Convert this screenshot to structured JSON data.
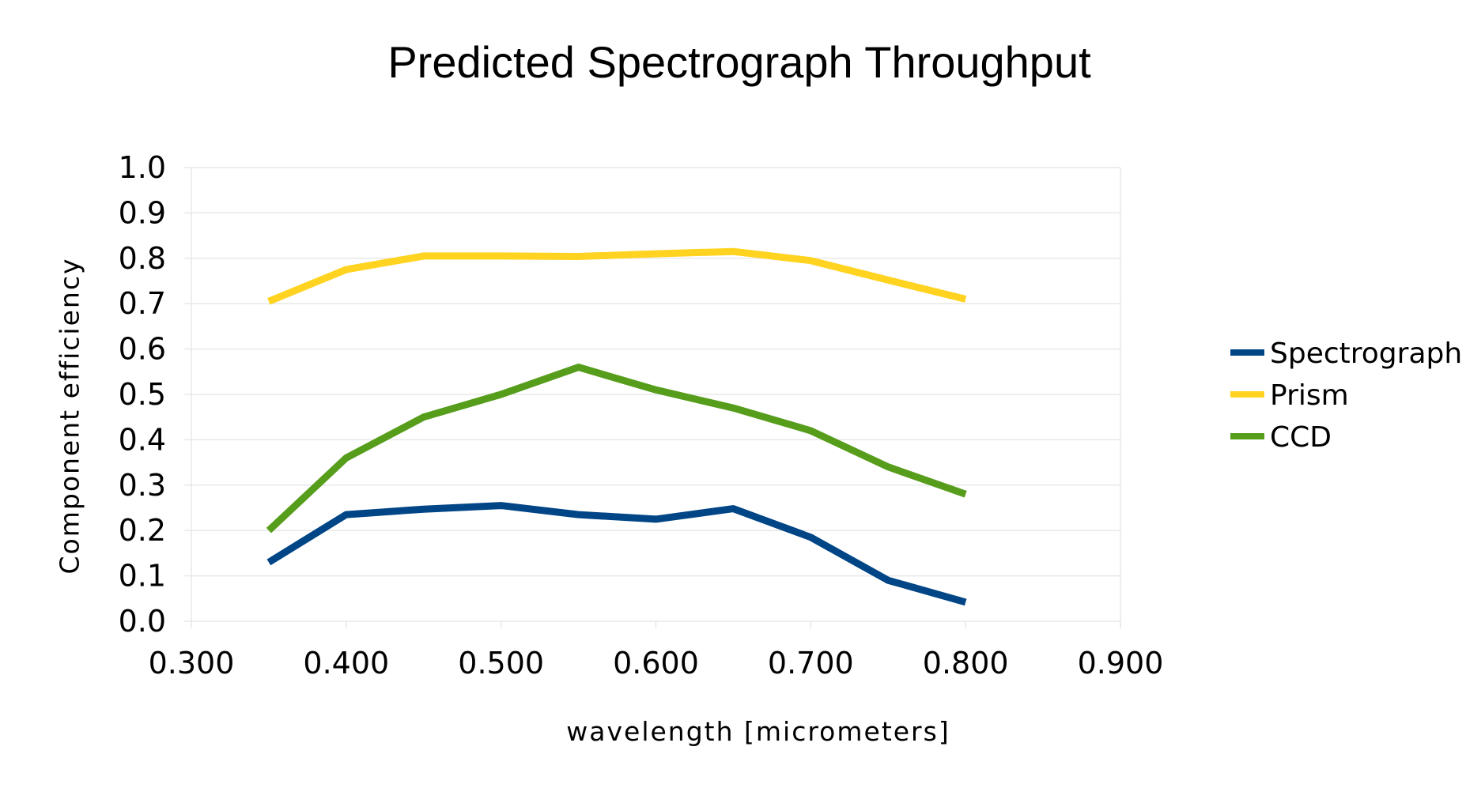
{
  "chart_data": {
    "type": "line",
    "title": "Predicted Spectrograph Throughput",
    "xlabel": "wavelength [micrometers]",
    "ylabel": "Component efficiency",
    "xlim": [
      0.3,
      0.9
    ],
    "ylim": [
      0.0,
      1.0
    ],
    "x_ticks": [
      "0.300",
      "0.400",
      "0.500",
      "0.600",
      "0.700",
      "0.800",
      "0.900"
    ],
    "y_ticks": [
      "0.0",
      "0.1",
      "0.2",
      "0.3",
      "0.4",
      "0.5",
      "0.6",
      "0.7",
      "0.8",
      "0.9",
      "1.0"
    ],
    "grid": "horizontal",
    "legend_position": "right",
    "x": [
      0.35,
      0.4,
      0.45,
      0.5,
      0.55,
      0.6,
      0.65,
      0.7,
      0.75,
      0.8
    ],
    "series": [
      {
        "name": "Spectrograph",
        "color": "#004586",
        "values": [
          0.13,
          0.235,
          0.247,
          0.255,
          0.235,
          0.225,
          0.248,
          0.185,
          0.09,
          0.042
        ]
      },
      {
        "name": "Prism",
        "color": "#ffd320",
        "values": [
          0.705,
          0.775,
          0.805,
          0.805,
          0.804,
          0.81,
          0.815,
          0.795,
          0.752,
          0.71
        ]
      },
      {
        "name": "CCD",
        "color": "#579d1c",
        "values": [
          0.2,
          0.36,
          0.45,
          0.5,
          0.56,
          0.51,
          0.47,
          0.42,
          0.34,
          0.28
        ]
      }
    ]
  }
}
